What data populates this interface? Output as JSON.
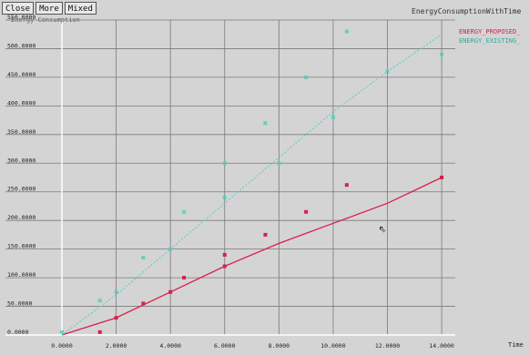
{
  "toolbar": {
    "close_label": "Close",
    "more_label": "More",
    "mixed_label": "Mixed"
  },
  "window_title": "EnergyConsumptionWithTime",
  "subtitle": "Energy Consumption",
  "colors": {
    "background": "#d4d4d4",
    "grid": "#7a7a7a",
    "series_proposed": "#d91f4b",
    "series_existing": "#55ccbb"
  },
  "chart_data": {
    "type": "scatter",
    "xlabel": "Time",
    "ylabel": "",
    "xlim": [
      0,
      14.5
    ],
    "ylim": [
      0,
      550
    ],
    "x_ticks": [
      0,
      2,
      4,
      6,
      8,
      10,
      12,
      14
    ],
    "x_tick_labels": [
      "0.0000",
      "2.0000",
      "4.0000",
      "6.0000",
      "8.0000",
      "10.0000",
      "12.0000",
      "14.0000"
    ],
    "y_ticks": [
      0,
      50,
      100,
      150,
      200,
      250,
      300,
      350,
      400,
      450,
      500,
      550
    ],
    "y_tick_labels": [
      "0.0000",
      "50.0000",
      "100.0000",
      "150.0000",
      "200.0000",
      "250.0000",
      "300.0000",
      "350.0000",
      "400.0000",
      "450.0000",
      "500.0000",
      "550.0000"
    ],
    "legend_position": "top-right",
    "grid": true,
    "series": [
      {
        "name": "ENERGY_PROPOSED_",
        "color": "#d91f4b",
        "points": [
          [
            1.4,
            5
          ],
          [
            2.0,
            30
          ],
          [
            3.0,
            55
          ],
          [
            4.0,
            75
          ],
          [
            4.5,
            100
          ],
          [
            6.0,
            120
          ],
          [
            6.0,
            140
          ],
          [
            7.5,
            175
          ],
          [
            9.0,
            215
          ],
          [
            10.5,
            262
          ],
          [
            14.0,
            275
          ]
        ],
        "trend": [
          [
            0,
            0
          ],
          [
            2,
            30
          ],
          [
            4,
            75
          ],
          [
            6,
            120
          ],
          [
            8,
            160
          ],
          [
            10,
            195
          ],
          [
            12,
            230
          ],
          [
            14,
            275
          ]
        ]
      },
      {
        "name": "ENERGY_EXISTING_",
        "color": "#55ccbb",
        "points": [
          [
            0,
            5
          ],
          [
            1.4,
            60
          ],
          [
            2.0,
            75
          ],
          [
            3.0,
            135
          ],
          [
            4.0,
            150
          ],
          [
            4.5,
            215
          ],
          [
            6.0,
            300
          ],
          [
            6.0,
            240
          ],
          [
            7.5,
            370
          ],
          [
            8.0,
            300
          ],
          [
            9.0,
            450
          ],
          [
            10.0,
            380
          ],
          [
            10.5,
            530
          ],
          [
            12.0,
            460
          ],
          [
            14.0,
            490
          ]
        ],
        "trend": [
          [
            0,
            0
          ],
          [
            2,
            70
          ],
          [
            4,
            150
          ],
          [
            6,
            230
          ],
          [
            8,
            310
          ],
          [
            10,
            390
          ],
          [
            12,
            460
          ],
          [
            14,
            525
          ]
        ]
      }
    ]
  }
}
